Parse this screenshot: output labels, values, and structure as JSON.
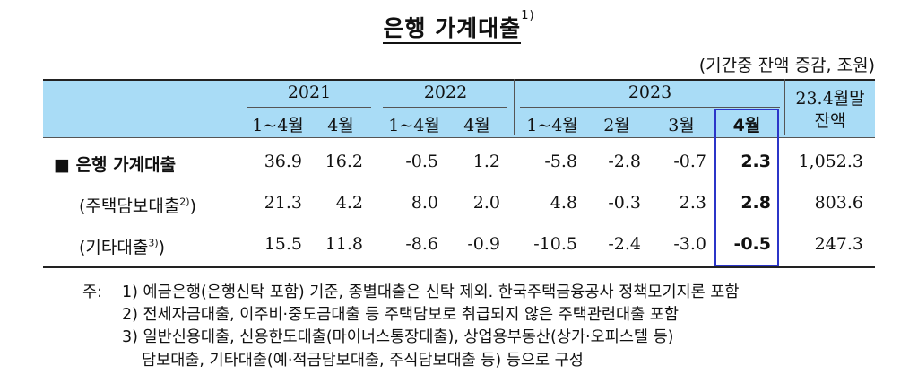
{
  "title": "은행 가계대출",
  "title_note": "1)",
  "unit": "(기간중 잔액 증감, 조원)",
  "header": {
    "years": [
      "2021",
      "2022",
      "2023"
    ],
    "periods": [
      "1~4월",
      "4월",
      "1~4월",
      "4월",
      "1~4월",
      "2월",
      "3월",
      "4월"
    ],
    "balance_line1": "23.4월말",
    "balance_line2": "잔액"
  },
  "rows": [
    {
      "label": "■ 은행 가계대출",
      "values": [
        "36.9",
        "16.2",
        "-0.5",
        "1.2",
        "-5.8",
        "-2.8",
        "-0.7",
        "2.3",
        "1,052.3"
      ]
    },
    {
      "label": "(주택담보대출",
      "sup": "2)",
      "close": ")",
      "values": [
        "21.3",
        "4.2",
        "8.0",
        "2.0",
        "4.8",
        "-0.3",
        "2.3",
        "2.8",
        "803.6"
      ]
    },
    {
      "label": "(기타대출",
      "sup": "3)",
      "close": ")",
      "values": [
        "15.5",
        "11.8",
        "-8.6",
        "-0.9",
        "-10.5",
        "-2.4",
        "-3.0",
        "-0.5",
        "247.3"
      ]
    }
  ],
  "notes": {
    "prefix": "주:",
    "n1": "1) 예금은행(은행신탁 포함) 기준, 종별대출은 신탁 제외. 한국주택금융공사 정책모기지론 포함",
    "n2": "2) 전세자금대출, 이주비·중도금대출 등 주택담보로 취급되지 않은 주택관련대출 포함",
    "n3": "3) 일반신용대출, 신용한도대출(마이너스통장대출), 상업용부동산(상가·오피스텔 등)",
    "n3b": "담보대출, 기타대출(예·적금담보대출, 주식담보대출 등) 등으로 구성"
  },
  "colors": {
    "header_bg": "#a9dcf6",
    "highlight_border": "#2b35c8"
  }
}
